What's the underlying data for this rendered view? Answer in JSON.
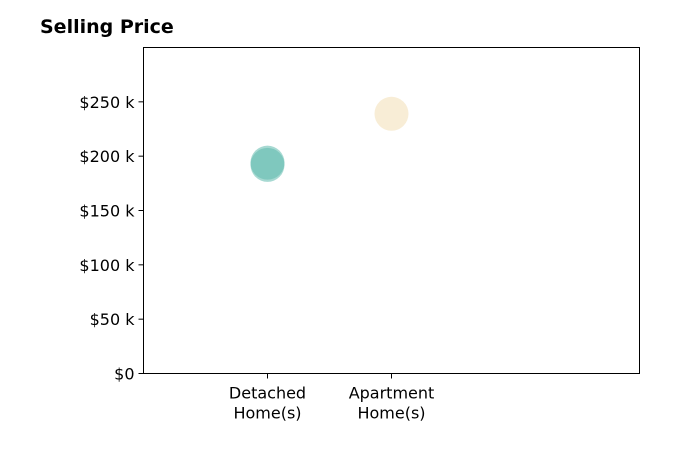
{
  "chart_data": {
    "type": "scatter",
    "title": "Selling Price",
    "xlabel": "",
    "ylabel": "",
    "categories": [
      "Detached Home(s)",
      "Apartment Home(s)"
    ],
    "category_lines": [
      [
        "Detached",
        "Home(s)"
      ],
      [
        "Apartment",
        "Home(s)"
      ]
    ],
    "ylim": [
      0,
      300000
    ],
    "yticks": [
      0,
      50000,
      100000,
      150000,
      200000,
      250000
    ],
    "ytick_labels": [
      "$0",
      "$50 k",
      "$100 k",
      "$150 k",
      "$200 k",
      "$250 k"
    ],
    "points": [
      {
        "category": "Detached Home(s)",
        "value": 194000,
        "color": "#5fb9ad"
      },
      {
        "category": "Detached Home(s)",
        "value": 192000,
        "color": "#5fb9ad"
      },
      {
        "category": "Apartment Home(s)",
        "value": 239000,
        "color": "#f3dfb4"
      }
    ],
    "grid": false
  }
}
